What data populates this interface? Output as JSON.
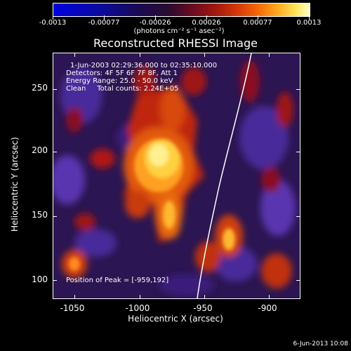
{
  "colorbar": {
    "ticks": [
      "-0.0013",
      "-0.00077",
      "-0.00026",
      "0.00026",
      "0.00077",
      "0.0013"
    ],
    "units": "(photons cm⁻² s⁻¹ asec⁻²)"
  },
  "title": "Reconstructed RHESSI Image",
  "info": {
    "time": "1-Jun-2003 02:29:36.000 to 02:35:10.000",
    "detectors": "Detectors: 4F 5F 6F 7F 8F, Att 1",
    "energy": "Energy Range: 25.0 - 50.0 keV",
    "method": "Clean     Total counts: 2.24E+05",
    "peak": "Position of Peak = [-959,192]"
  },
  "axes": {
    "x_title": "Heliocentric X (arcsec)",
    "y_title": "Heliocentric Y (arcsec)",
    "x_ticks": [
      "-1050",
      "-1000",
      "-950",
      "-900"
    ],
    "y_ticks": [
      "250",
      "200",
      "150",
      "100"
    ]
  },
  "footer": "6-Jun-2013 10:08"
}
